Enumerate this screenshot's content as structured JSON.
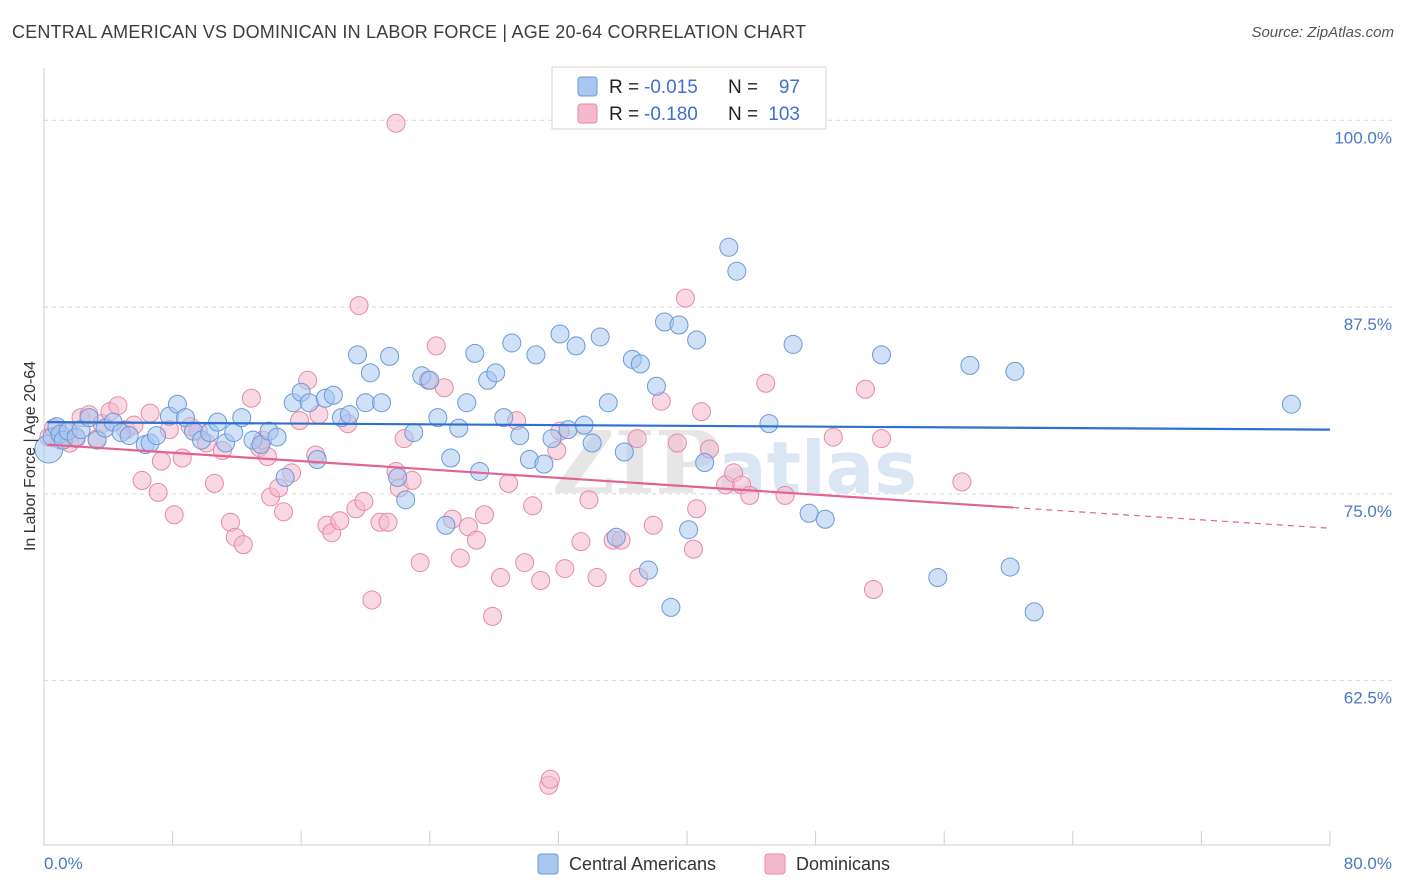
{
  "header": {
    "title": "CENTRAL AMERICAN VS DOMINICAN IN LABOR FORCE | AGE 20-64 CORRELATION CHART",
    "source": "Source: ZipAtlas.com"
  },
  "colors": {
    "blue_fill": "#a8c6f0",
    "blue_stroke": "#6a9ad8",
    "blue_line": "#2f6fd0",
    "pink_fill": "#f5b8cc",
    "pink_stroke": "#e58aa8",
    "pink_line": "#e0648f",
    "tick_text": "#4a78c8",
    "grid": "#d9d9d9"
  },
  "legend": {
    "rows": [
      {
        "r_label": "R =",
        "r_value": "-0.015",
        "n_label": "N =",
        "n_value": "97"
      },
      {
        "r_label": "R =",
        "r_value": "-0.180",
        "n_label": "N =",
        "n_value": "103"
      }
    ]
  },
  "watermark": {
    "zip": "ZIP",
    "atlas": "atlas"
  },
  "chart_data": {
    "type": "scatter",
    "title": "CENTRAL AMERICAN VS DOMINICAN IN LABOR FORCE | AGE 20-64 CORRELATION CHART",
    "xlabel": "",
    "ylabel": "In Labor Force | Age 20-64",
    "xlim": [
      0,
      80
    ],
    "ylim": [
      51.5,
      103.5
    ],
    "x_tick_labels": [
      "0.0%",
      "80.0%"
    ],
    "y_ticks": [
      100,
      87.5,
      75,
      62.5
    ],
    "y_tick_labels": [
      "100.0%",
      "87.5%",
      "75.0%",
      "62.5%"
    ],
    "grid": "horizontal dashed",
    "legend_position": "top-center and bottom",
    "series": [
      {
        "name": "Central Americans",
        "color": "#a8c6f0",
        "trend": {
          "x": [
            0.2,
            80
          ],
          "y": [
            79.8,
            79.3
          ],
          "dashed_from_x": null
        },
        "points": [
          [
            0.3,
            78.0
          ],
          [
            0.5,
            78.8
          ],
          [
            0.8,
            79.5
          ],
          [
            1.0,
            79.0
          ],
          [
            1.2,
            78.6
          ],
          [
            1.5,
            79.2
          ],
          [
            2.0,
            78.8
          ],
          [
            2.3,
            79.3
          ],
          [
            2.8,
            80.1
          ],
          [
            3.3,
            78.6
          ],
          [
            3.8,
            79.4
          ],
          [
            4.3,
            79.8
          ],
          [
            4.8,
            79.1
          ],
          [
            5.3,
            78.9
          ],
          [
            6.3,
            78.3
          ],
          [
            6.6,
            78.4
          ],
          [
            7.0,
            78.9
          ],
          [
            7.8,
            80.2
          ],
          [
            8.3,
            81.0
          ],
          [
            8.8,
            80.1
          ],
          [
            9.3,
            79.2
          ],
          [
            9.8,
            78.6
          ],
          [
            10.3,
            79.1
          ],
          [
            10.8,
            79.8
          ],
          [
            11.3,
            78.4
          ],
          [
            11.8,
            79.1
          ],
          [
            12.3,
            80.1
          ],
          [
            13.0,
            78.6
          ],
          [
            13.5,
            78.3
          ],
          [
            14.0,
            79.2
          ],
          [
            14.5,
            78.8
          ],
          [
            15.0,
            76.1
          ],
          [
            15.5,
            81.1
          ],
          [
            16.0,
            81.8
          ],
          [
            16.5,
            81.1
          ],
          [
            17.0,
            77.3
          ],
          [
            17.5,
            81.4
          ],
          [
            18.0,
            81.6
          ],
          [
            18.5,
            80.1
          ],
          [
            19.0,
            80.3
          ],
          [
            19.5,
            84.3
          ],
          [
            20.0,
            81.1
          ],
          [
            20.3,
            83.1
          ],
          [
            21.0,
            81.1
          ],
          [
            21.5,
            84.2
          ],
          [
            22.0,
            76.1
          ],
          [
            22.5,
            74.6
          ],
          [
            23.0,
            79.1
          ],
          [
            23.5,
            82.9
          ],
          [
            24.0,
            82.6
          ],
          [
            24.5,
            80.1
          ],
          [
            25.0,
            72.9
          ],
          [
            25.3,
            77.4
          ],
          [
            25.8,
            79.4
          ],
          [
            26.3,
            81.1
          ],
          [
            26.8,
            84.4
          ],
          [
            27.1,
            76.5
          ],
          [
            27.6,
            82.6
          ],
          [
            28.1,
            83.1
          ],
          [
            28.6,
            80.1
          ],
          [
            29.1,
            85.1
          ],
          [
            29.6,
            78.9
          ],
          [
            30.2,
            77.3
          ],
          [
            30.6,
            84.3
          ],
          [
            31.1,
            77.0
          ],
          [
            31.6,
            78.7
          ],
          [
            32.1,
            85.7
          ],
          [
            32.6,
            79.3
          ],
          [
            33.1,
            84.9
          ],
          [
            33.6,
            79.6
          ],
          [
            34.1,
            78.4
          ],
          [
            34.6,
            85.5
          ],
          [
            35.1,
            81.1
          ],
          [
            35.6,
            72.1
          ],
          [
            36.1,
            77.8
          ],
          [
            36.6,
            84.0
          ],
          [
            37.1,
            83.7
          ],
          [
            37.6,
            69.9
          ],
          [
            38.1,
            82.2
          ],
          [
            38.6,
            86.5
          ],
          [
            39.0,
            67.4
          ],
          [
            39.5,
            86.3
          ],
          [
            40.1,
            72.6
          ],
          [
            40.6,
            85.3
          ],
          [
            41.1,
            77.1
          ],
          [
            42.6,
            91.5
          ],
          [
            43.1,
            89.9
          ],
          [
            45.1,
            79.7
          ],
          [
            46.6,
            85.0
          ],
          [
            47.6,
            73.7
          ],
          [
            48.6,
            73.3
          ],
          [
            52.1,
            84.3
          ],
          [
            55.6,
            69.4
          ],
          [
            57.6,
            83.6
          ],
          [
            60.1,
            70.1
          ],
          [
            60.4,
            83.2
          ],
          [
            61.6,
            67.1
          ],
          [
            77.6,
            81.0
          ]
        ]
      },
      {
        "name": "Dominicans",
        "color": "#f5b8cc",
        "trend": {
          "x": [
            0.2,
            80
          ],
          "y": [
            78.3,
            72.7
          ],
          "dashed_from_x": 60.3
        },
        "points": [
          [
            0.3,
            78.8
          ],
          [
            0.6,
            79.4
          ],
          [
            1.0,
            78.6
          ],
          [
            1.3,
            79.2
          ],
          [
            1.6,
            78.4
          ],
          [
            2.0,
            78.7
          ],
          [
            2.3,
            80.1
          ],
          [
            2.8,
            80.3
          ],
          [
            3.3,
            78.7
          ],
          [
            3.6,
            79.7
          ],
          [
            4.1,
            80.5
          ],
          [
            4.6,
            80.9
          ],
          [
            5.1,
            79.3
          ],
          [
            5.6,
            79.6
          ],
          [
            6.1,
            75.9
          ],
          [
            6.6,
            80.4
          ],
          [
            7.1,
            75.1
          ],
          [
            7.3,
            77.2
          ],
          [
            7.8,
            79.3
          ],
          [
            8.1,
            73.6
          ],
          [
            8.6,
            77.4
          ],
          [
            9.1,
            79.5
          ],
          [
            9.6,
            79.2
          ],
          [
            10.1,
            78.4
          ],
          [
            10.6,
            75.7
          ],
          [
            11.1,
            77.9
          ],
          [
            11.6,
            73.1
          ],
          [
            11.9,
            72.1
          ],
          [
            12.4,
            71.6
          ],
          [
            12.9,
            81.4
          ],
          [
            13.4,
            78.1
          ],
          [
            13.9,
            77.5
          ],
          [
            14.1,
            74.8
          ],
          [
            14.6,
            75.4
          ],
          [
            14.9,
            73.8
          ],
          [
            15.4,
            76.4
          ],
          [
            15.9,
            79.9
          ],
          [
            16.4,
            82.6
          ],
          [
            16.9,
            77.6
          ],
          [
            17.1,
            80.3
          ],
          [
            17.6,
            72.9
          ],
          [
            17.9,
            72.4
          ],
          [
            18.4,
            73.2
          ],
          [
            18.9,
            79.7
          ],
          [
            19.4,
            74.0
          ],
          [
            19.6,
            87.6
          ],
          [
            19.9,
            74.5
          ],
          [
            20.4,
            67.9
          ],
          [
            20.9,
            73.1
          ],
          [
            21.4,
            73.1
          ],
          [
            21.9,
            76.5
          ],
          [
            22.1,
            75.4
          ],
          [
            22.4,
            78.7
          ],
          [
            22.9,
            75.9
          ],
          [
            23.4,
            70.4
          ],
          [
            23.9,
            82.6
          ],
          [
            24.4,
            84.9
          ],
          [
            24.9,
            82.1
          ],
          [
            25.4,
            73.3
          ],
          [
            25.9,
            70.7
          ],
          [
            26.4,
            72.8
          ],
          [
            26.9,
            71.9
          ],
          [
            27.4,
            73.6
          ],
          [
            27.9,
            66.8
          ],
          [
            28.4,
            69.4
          ],
          [
            28.9,
            75.7
          ],
          [
            29.4,
            79.9
          ],
          [
            29.9,
            70.4
          ],
          [
            30.4,
            74.2
          ],
          [
            30.9,
            69.2
          ],
          [
            31.4,
            55.5
          ],
          [
            31.9,
            77.9
          ],
          [
            32.1,
            79.2
          ],
          [
            32.4,
            70.0
          ],
          [
            33.4,
            71.8
          ],
          [
            33.9,
            74.6
          ],
          [
            34.4,
            69.4
          ],
          [
            35.4,
            71.9
          ],
          [
            35.9,
            71.9
          ],
          [
            36.9,
            78.7
          ],
          [
            37.9,
            72.9
          ],
          [
            39.4,
            78.4
          ],
          [
            39.9,
            88.1
          ],
          [
            40.4,
            71.3
          ],
          [
            40.9,
            80.5
          ],
          [
            41.4,
            78.0
          ],
          [
            42.4,
            75.6
          ],
          [
            42.9,
            76.4
          ],
          [
            43.4,
            75.6
          ],
          [
            43.9,
            74.9
          ],
          [
            44.9,
            82.4
          ],
          [
            46.1,
            74.9
          ],
          [
            49.1,
            78.8
          ],
          [
            51.1,
            82.0
          ],
          [
            51.6,
            68.6
          ],
          [
            52.1,
            78.7
          ],
          [
            57.1,
            75.8
          ],
          [
            21.9,
            99.8
          ],
          [
            37.0,
            69.4
          ],
          [
            38.4,
            81.2
          ],
          [
            40.6,
            74.0
          ],
          [
            13.6,
            78.6
          ],
          [
            31.5,
            55.9
          ]
        ]
      }
    ]
  },
  "bottom_legend": [
    {
      "label": "Central Americans"
    },
    {
      "label": "Dominicans"
    }
  ]
}
